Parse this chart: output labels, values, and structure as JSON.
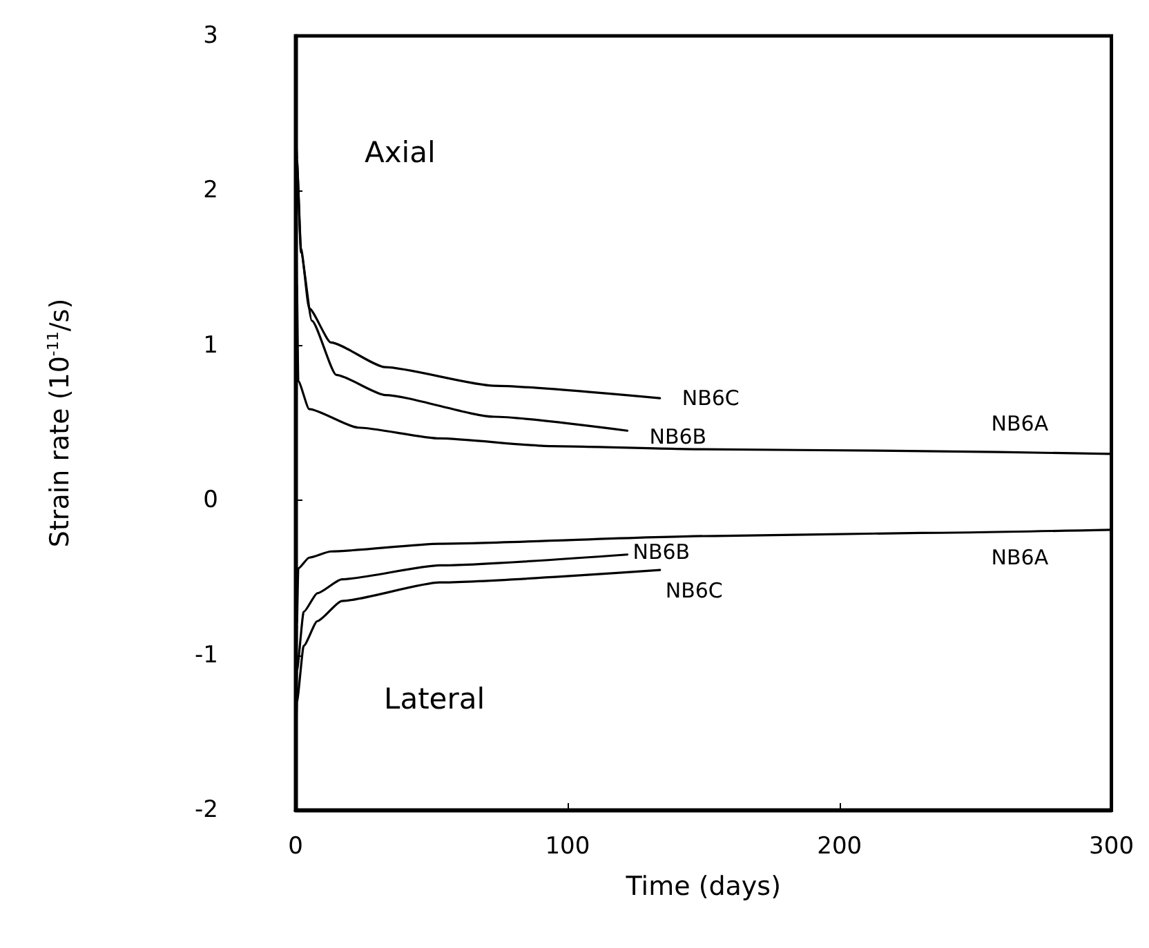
{
  "chart_data": {
    "type": "line",
    "xlabel": "Time (days)",
    "ylabel": "Strain rate (10$^{-11}$/s)",
    "xlim": [
      0,
      300
    ],
    "xticks": [
      0,
      100,
      200,
      300
    ],
    "ylim": [
      -2,
      3
    ],
    "yticks": [
      -2,
      -1,
      0,
      1,
      2,
      3
    ],
    "grid": false,
    "marker": "none",
    "line_style": "solid",
    "series": [
      {
        "name": "NB6C",
        "color": "#000000",
        "x": [
          0,
          0.5,
          2,
          5,
          13,
          33,
          73,
          134
        ],
        "values": [
          2.6,
          2.2,
          1.63,
          1.24,
          1.02,
          0.86,
          0.74,
          0.66
        ]
      },
      {
        "name": "NB6B",
        "color": "#000000",
        "x": [
          0,
          0.5,
          2,
          6,
          15,
          33,
          73,
          122
        ],
        "values": [
          2.6,
          2.2,
          1.6,
          1.16,
          0.81,
          0.68,
          0.54,
          0.45
        ]
      },
      {
        "name": "NB6A",
        "color": "#000000",
        "x": [
          0,
          0.5,
          1,
          5,
          23,
          53,
          94,
          150,
          220,
          300
        ],
        "values": [
          2.6,
          1.4,
          0.77,
          0.59,
          0.47,
          0.4,
          0.35,
          0.33,
          0.32,
          0.3
        ]
      },
      {
        "name": "NB6A",
        "color": "#000000",
        "x": [
          0,
          0.5,
          1,
          5,
          13,
          53,
          154,
          230,
          300
        ],
        "values": [
          -1.76,
          -0.8,
          -0.44,
          -0.37,
          -0.33,
          -0.28,
          -0.23,
          -0.21,
          -0.19
        ]
      },
      {
        "name": "NB6B",
        "color": "#000000",
        "x": [
          0,
          0.5,
          3,
          8,
          17,
          53,
          122
        ],
        "values": [
          -1.76,
          -1.1,
          -0.72,
          -0.6,
          -0.51,
          -0.42,
          -0.35
        ]
      },
      {
        "name": "NB6C",
        "color": "#000000",
        "x": [
          0,
          0.5,
          3,
          8,
          17,
          53,
          134
        ],
        "values": [
          -1.76,
          -1.3,
          -0.94,
          -0.78,
          -0.65,
          -0.53,
          -0.45
        ]
      }
    ],
    "annotations": [
      "Axial",
      "Lateral"
    ]
  }
}
